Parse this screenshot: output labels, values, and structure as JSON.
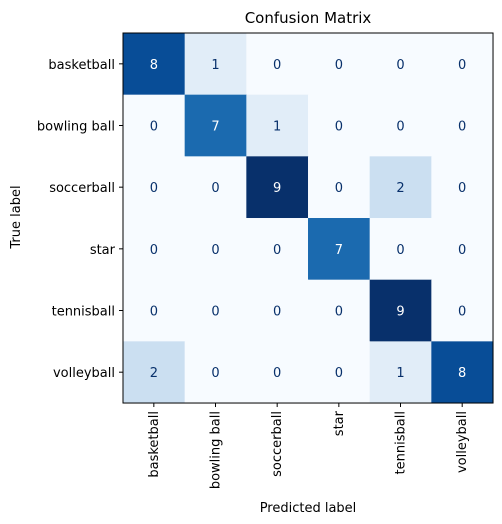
{
  "chart_data": {
    "type": "heatmap",
    "title": "Confusion Matrix",
    "xlabel": "Predicted label",
    "ylabel": "True label",
    "x_categories": [
      "basketball",
      "bowling ball",
      "soccerball",
      "star",
      "tennisball",
      "volleyball"
    ],
    "y_categories": [
      "basketball",
      "bowling ball",
      "soccerball",
      "star",
      "tennisball",
      "volleyball"
    ],
    "values": [
      [
        8,
        1,
        0,
        0,
        0,
        0
      ],
      [
        0,
        7,
        1,
        0,
        0,
        0
      ],
      [
        0,
        0,
        9,
        0,
        2,
        0
      ],
      [
        0,
        0,
        0,
        7,
        0,
        0
      ],
      [
        0,
        0,
        0,
        0,
        9,
        0
      ],
      [
        2,
        0,
        0,
        0,
        1,
        8
      ]
    ],
    "vmin": 0,
    "vmax": 9,
    "colormap": "Blues",
    "grid": false
  }
}
